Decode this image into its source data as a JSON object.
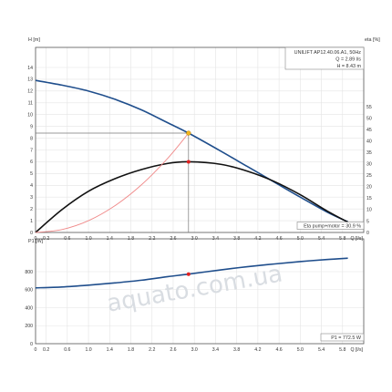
{
  "chart_data": [
    {
      "type": "line",
      "title": "UNILIFT AP12.40.06.A1, 50Hz",
      "xlabel": "Q [l/s]",
      "ylabel": "H [m]",
      "y2label": "eta [%]",
      "xlim": [
        0,
        6.2
      ],
      "ylim": [
        0,
        16
      ],
      "y2lim": [
        0,
        80
      ],
      "xticks": [
        "0",
        "0.2",
        "0.6",
        "1.0",
        "1.4",
        "1.8",
        "2.2",
        "2.6",
        "3.0",
        "3.4",
        "3.8",
        "4.2",
        "4.6",
        "5.0",
        "5.4",
        "5.8",
        "Q [l/s]"
      ],
      "xtick_values": [
        0,
        0.2,
        0.6,
        1.0,
        1.4,
        1.8,
        2.2,
        2.6,
        3.0,
        3.4,
        3.8,
        4.2,
        4.6,
        5.0,
        5.4,
        5.8
      ],
      "yticks": [
        "0",
        "1",
        "2",
        "3",
        "4",
        "5",
        "6",
        "7",
        "8",
        "9",
        "10",
        "11",
        "12",
        "13",
        "14"
      ],
      "y2ticks": [
        "0",
        "5",
        "10",
        "15",
        "20",
        "25",
        "30",
        "35",
        "40",
        "45",
        "50",
        "55"
      ],
      "grid": true,
      "info": {
        "model": "UNILIFT AP12.40.06.A1, 50Hz",
        "q": "Q = 2.89 l/s",
        "h": "H = 8.43 m"
      },
      "eta_label": "Eta pump+motor = 30.9 %",
      "operating_point": {
        "q": 2.89,
        "h": 8.43,
        "eta": 30.9
      },
      "series": [
        {
          "name": "H",
          "color": "#1f4e8c",
          "x": [
            0,
            0.5,
            1.0,
            1.5,
            2.0,
            2.5,
            2.89,
            3.5,
            4.0,
            4.5,
            5.0,
            5.5,
            5.9
          ],
          "y": [
            12.9,
            12.5,
            12.0,
            11.3,
            10.4,
            9.3,
            8.43,
            6.9,
            5.6,
            4.3,
            3.0,
            1.75,
            0.9
          ]
        },
        {
          "name": "Eta pump+motor",
          "color": "#111111",
          "axis": "y2",
          "x": [
            0,
            0.5,
            1.0,
            1.5,
            2.0,
            2.5,
            2.89,
            3.5,
            4.0,
            4.5,
            5.0,
            5.5,
            5.9
          ],
          "y": [
            0,
            10,
            18,
            23.5,
            27.5,
            30.2,
            30.9,
            29.8,
            26.8,
            22.4,
            16.5,
            9.5,
            4.5
          ]
        },
        {
          "name": "System curve",
          "color": "#f08a8a",
          "x": [
            0,
            0.5,
            1.0,
            1.5,
            2.0,
            2.5,
            2.89
          ],
          "y": [
            0,
            0.25,
            1.0,
            2.27,
            4.04,
            6.31,
            8.43
          ]
        }
      ]
    },
    {
      "type": "line",
      "xlabel": "",
      "ylabel": "P1 [W]",
      "xlim": [
        0,
        6.2
      ],
      "ylim": [
        0,
        1100
      ],
      "yticks": [
        "0",
        "200",
        "400",
        "600",
        "800"
      ],
      "xticks": [
        "0",
        "0.2",
        "0.6",
        "1.0",
        "1.4",
        "1.8",
        "2.2",
        "2.6",
        "3.0",
        "3.4",
        "3.8",
        "4.2",
        "4.6",
        "5.0",
        "5.4",
        "5.8",
        "Q [l/s]"
      ],
      "xtick_values": [
        0,
        0.2,
        0.6,
        1.0,
        1.4,
        1.8,
        2.2,
        2.6,
        3.0,
        3.4,
        3.8,
        4.2,
        4.6,
        5.0,
        5.4,
        5.8
      ],
      "grid": true,
      "p1_label": "P1 = 772.5 W",
      "operating_point": {
        "q": 2.89,
        "p1": 772.5
      },
      "series": [
        {
          "name": "P1",
          "color": "#1f4e8c",
          "x": [
            0,
            0.5,
            1.0,
            1.5,
            2.0,
            2.5,
            2.89,
            3.5,
            4.0,
            4.5,
            5.0,
            5.5,
            5.9
          ],
          "y": [
            620,
            630,
            650,
            675,
            705,
            745,
            772.5,
            820,
            855,
            885,
            912,
            935,
            950
          ]
        }
      ]
    }
  ],
  "watermark": "aquato.com.ua"
}
